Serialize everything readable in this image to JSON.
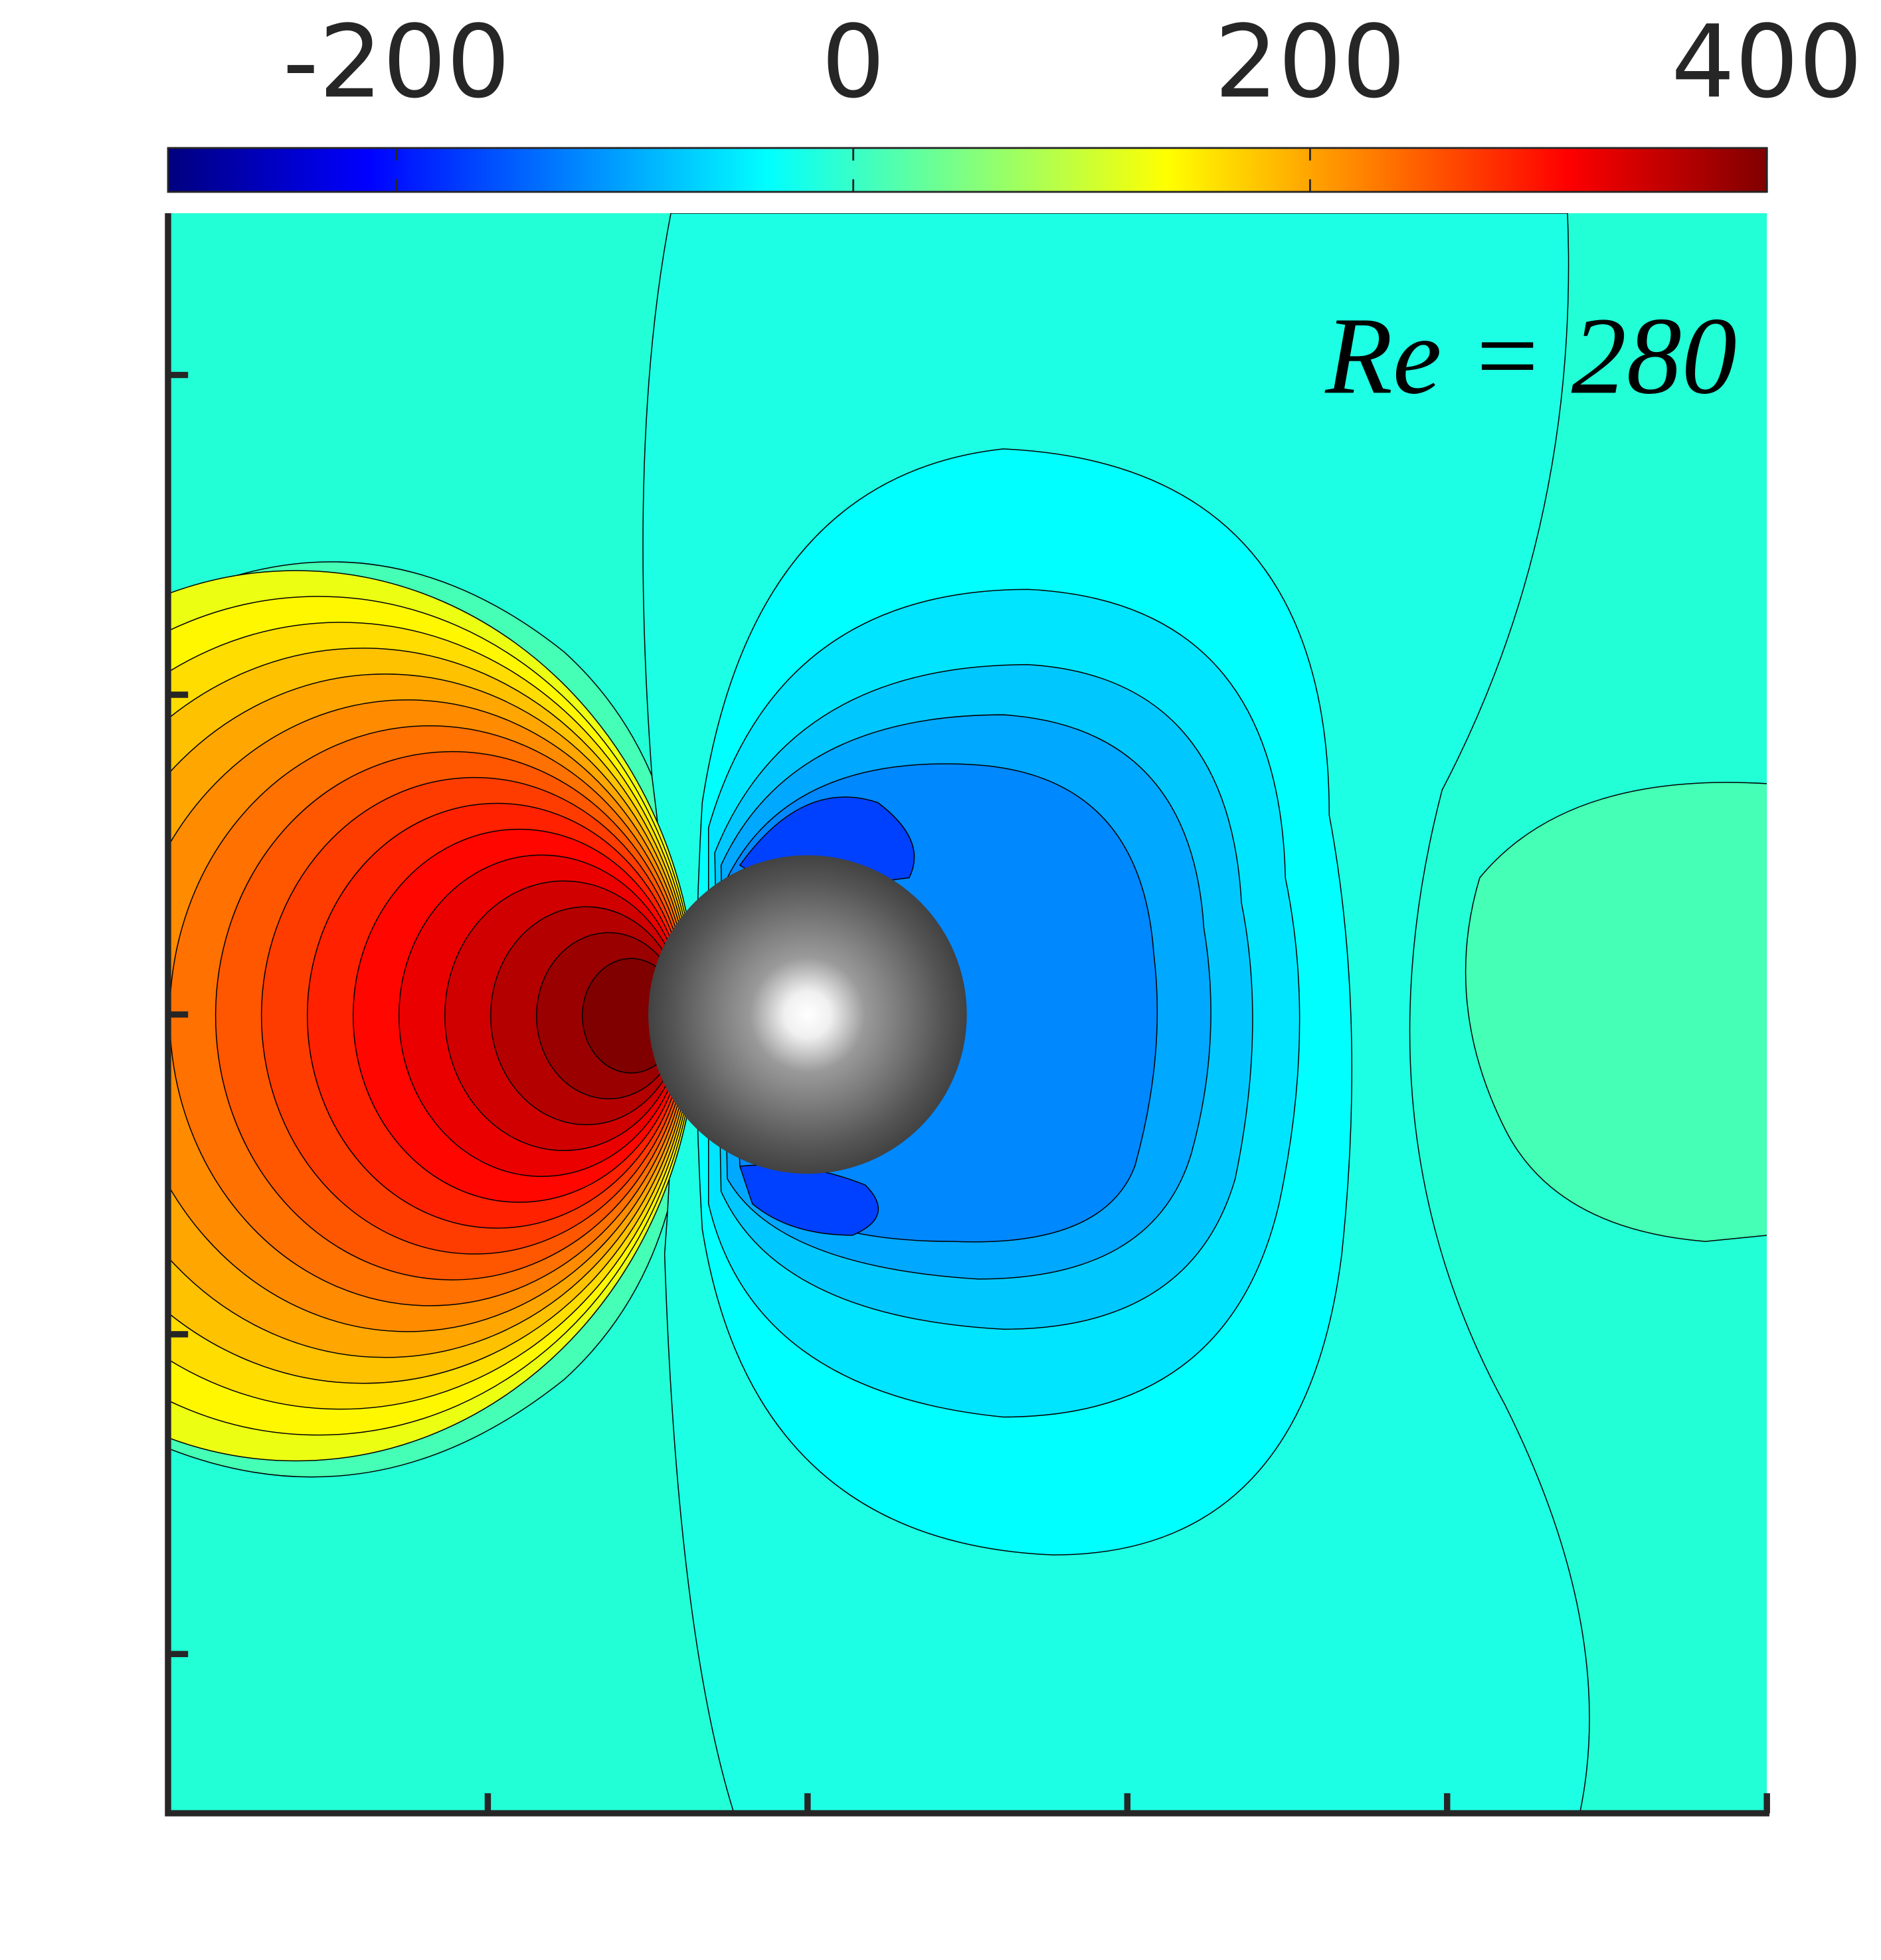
{
  "chart_data": {
    "type": "contour",
    "annotation": "Re = 280",
    "colormap": "jet",
    "clim": [
      -300,
      400
    ],
    "colorbar_ticks": [
      -200,
      0,
      200,
      400
    ]
  }
}
